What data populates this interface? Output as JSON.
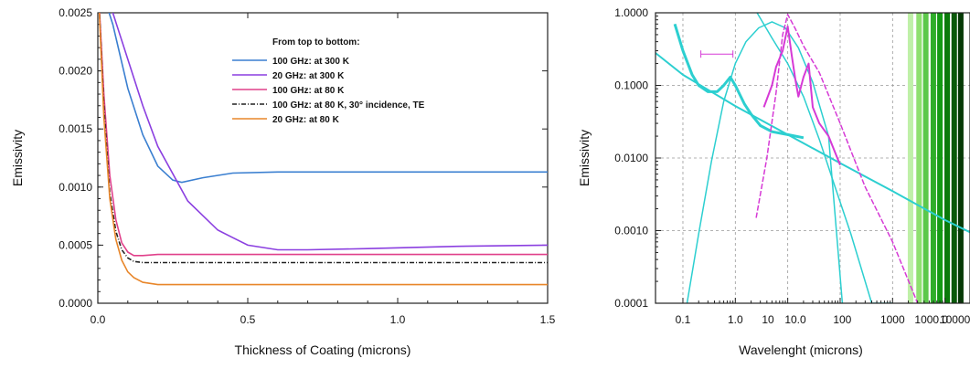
{
  "chart_data": [
    {
      "type": "line",
      "title": "",
      "xlabel": "Thickness of Coating (microns)",
      "ylabel": "Emissivity",
      "xlim": [
        0.0,
        1.5
      ],
      "ylim": [
        0.0,
        0.0025
      ],
      "x_ticks": [
        "0.0",
        "0.5",
        "1.0",
        "1.5"
      ],
      "y_ticks": [
        "0.0000",
        "0.0005",
        "0.0010",
        "0.0015",
        "0.0020",
        "0.0025"
      ],
      "grid": false,
      "legend_title": "From top to bottom:",
      "legend_position": "top-right",
      "series": [
        {
          "name": "100 GHz: at  300 K",
          "color": "#3a7fd0",
          "style": "solid",
          "x": [
            0.0,
            0.05,
            0.1,
            0.15,
            0.2,
            0.25,
            0.28,
            0.35,
            0.45,
            0.6,
            0.8,
            1.0,
            1.2,
            1.5
          ],
          "y": [
            0.0028,
            0.0024,
            0.00185,
            0.00145,
            0.00118,
            0.00106,
            0.00104,
            0.00108,
            0.00112,
            0.00113,
            0.00113,
            0.00113,
            0.00113,
            0.00113
          ]
        },
        {
          "name": " 20 GHz: at  300 K",
          "color": "#8b3fe0",
          "style": "solid",
          "x": [
            0.0,
            0.05,
            0.1,
            0.15,
            0.2,
            0.3,
            0.4,
            0.5,
            0.6,
            0.7,
            0.9,
            1.2,
            1.5
          ],
          "y": [
            0.0028,
            0.0025,
            0.0021,
            0.0017,
            0.00135,
            0.00088,
            0.00063,
            0.0005,
            0.00046,
            0.00046,
            0.00047,
            0.00049,
            0.0005
          ]
        },
        {
          "name": "100 GHz: at    80 K",
          "color": "#e0408a",
          "style": "solid",
          "x": [
            0.0,
            0.02,
            0.04,
            0.06,
            0.08,
            0.1,
            0.12,
            0.15,
            0.2,
            0.4,
            0.8,
            1.2,
            1.5
          ],
          "y": [
            0.0028,
            0.0018,
            0.0011,
            0.00072,
            0.00052,
            0.00044,
            0.00041,
            0.00041,
            0.00042,
            0.00042,
            0.00042,
            0.00042,
            0.00042
          ]
        },
        {
          "name": "100 GHz: at    80 K, 30° incidence, TE",
          "color": "#222222",
          "style": "dashdot",
          "x": [
            0.0,
            0.02,
            0.04,
            0.06,
            0.08,
            0.1,
            0.12,
            0.15,
            0.2,
            0.4,
            0.8,
            1.2,
            1.5
          ],
          "y": [
            0.0028,
            0.0017,
            0.00095,
            0.00062,
            0.00046,
            0.00039,
            0.00036,
            0.00035,
            0.00035,
            0.00035,
            0.00035,
            0.00035,
            0.00035
          ]
        },
        {
          "name": " 20 GHz: at    80 K",
          "color": "#e8862a",
          "style": "solid",
          "x": [
            0.0,
            0.02,
            0.04,
            0.06,
            0.08,
            0.1,
            0.12,
            0.15,
            0.2,
            0.3,
            0.6,
            1.0,
            1.5
          ],
          "y": [
            0.0028,
            0.0016,
            0.0009,
            0.00055,
            0.00037,
            0.00027,
            0.00022,
            0.00018,
            0.00016,
            0.00016,
            0.00016,
            0.00016,
            0.00016
          ]
        }
      ]
    },
    {
      "type": "line",
      "title": "",
      "xlabel": "Wavelenght (microns)",
      "ylabel": "Emissivity",
      "xscale": "log",
      "yscale": "log",
      "xlim": [
        0.03,
        30000
      ],
      "ylim": [
        0.0001,
        1.0
      ],
      "x_ticks": [
        "0.1",
        "1.0",
        "10",
        "10.0",
        "100",
        "1000",
        "1000.0",
        "10000.0"
      ],
      "y_ticks": [
        "0.0001",
        "0.0010",
        "0.0100",
        "0.1000",
        "1.0000"
      ],
      "grid": true,
      "series": [
        {
          "color": "#2ccfd0",
          "style": "solid",
          "width": 2,
          "x": [
            0.03,
            0.1,
            1,
            10,
            100,
            1000,
            10000,
            30000
          ],
          "y": [
            0.28,
            0.14,
            0.052,
            0.021,
            0.0085,
            0.0035,
            0.0014,
            0.00095
          ]
        },
        {
          "color": "#2ccfd0",
          "style": "solid",
          "width": 1.5,
          "x": [
            0.12,
            0.2,
            0.35,
            0.6,
            1,
            1.6,
            2.8,
            5,
            9,
            16,
            30,
            60,
            110
          ],
          "y": [
            0.0001,
            0.0009,
            0.009,
            0.06,
            0.2,
            0.4,
            0.62,
            0.75,
            0.62,
            0.33,
            0.11,
            0.02,
            0.0001
          ]
        },
        {
          "color": "#2ccfd0",
          "style": "solid",
          "width": 1.5,
          "x": [
            2.6,
            5,
            10,
            20,
            40,
            80,
            160,
            400,
            1000
          ],
          "y": [
            1.0,
            0.45,
            0.2,
            0.07,
            0.018,
            0.004,
            0.0009,
            0.0001,
            0.0001
          ]
        },
        {
          "color": "#2ccfd0",
          "style": "solid",
          "width": 3,
          "x": [
            0.07,
            0.1,
            0.15,
            0.2,
            0.3,
            0.45,
            0.6,
            0.8,
            1,
            1.5,
            2,
            3,
            5,
            10,
            20
          ],
          "y": [
            0.7,
            0.3,
            0.14,
            0.1,
            0.082,
            0.082,
            0.1,
            0.13,
            0.1,
            0.055,
            0.04,
            0.028,
            0.023,
            0.021,
            0.019
          ]
        },
        {
          "color": "#d63ad6",
          "style": "solid",
          "width": 2,
          "x": [
            3.5,
            5,
            6,
            8,
            10,
            12,
            14,
            16,
            20,
            25,
            30,
            40,
            60,
            100
          ],
          "y": [
            0.05,
            0.1,
            0.18,
            0.3,
            0.65,
            0.25,
            0.12,
            0.07,
            0.13,
            0.2,
            0.05,
            0.03,
            0.02,
            0.008
          ]
        },
        {
          "color": "#d63ad6",
          "style": "dashed",
          "width": 1.5,
          "x": [
            2.5,
            4,
            6,
            8,
            10,
            14,
            20,
            40,
            100,
            300,
            1000,
            3000
          ],
          "y": [
            0.0015,
            0.01,
            0.08,
            0.5,
            0.95,
            0.6,
            0.35,
            0.15,
            0.03,
            0.004,
            0.0007,
            0.0001
          ]
        }
      ],
      "bands": [
        {
          "x": 2200,
          "color": "#bff0a8"
        },
        {
          "x": 3200,
          "color": "#8fe070"
        },
        {
          "x": 4300,
          "color": "#5cc84a"
        },
        {
          "x": 6000,
          "color": "#2fae2a"
        },
        {
          "x": 8000,
          "color": "#149a14"
        },
        {
          "x": 11000,
          "color": "#0a7a0a"
        },
        {
          "x": 15000,
          "color": "#0b5a0b"
        },
        {
          "x": 20000,
          "color": "#063a06"
        }
      ],
      "annotations": [
        {
          "type": "errorbar",
          "x": [
            0.22,
            0.9
          ],
          "y": 0.27,
          "color": "#d63ad6"
        }
      ]
    }
  ]
}
